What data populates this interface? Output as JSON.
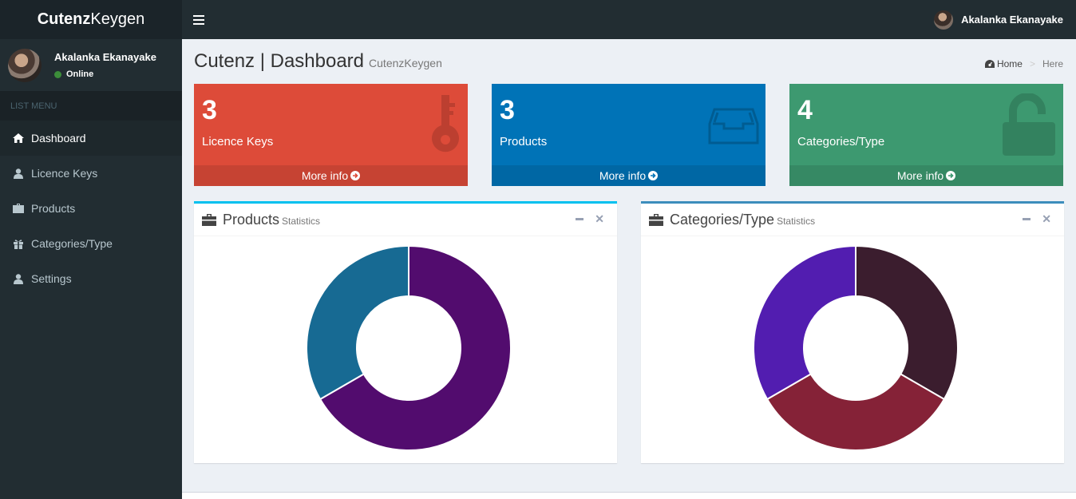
{
  "logo": {
    "bold": "Cutenz",
    "light": "Keygen"
  },
  "user": {
    "name": "Akalanka Ekanayake",
    "status": "Online"
  },
  "sidebar": {
    "header": "LIST MENU",
    "items": [
      {
        "label": "Dashboard",
        "icon": "home-icon",
        "active": true
      },
      {
        "label": "Licence Keys",
        "icon": "user-icon"
      },
      {
        "label": "Products",
        "icon": "briefcase-icon"
      },
      {
        "label": "Categories/Type",
        "icon": "gift-icon"
      },
      {
        "label": "Settings",
        "icon": "user-icon"
      }
    ]
  },
  "page": {
    "title": "Cutenz | Dashboard",
    "subtitle": "CutenzKeygen"
  },
  "breadcrumb": {
    "home": "Home",
    "sep": ">",
    "current": "Here"
  },
  "boxes": [
    {
      "value": "3",
      "label": "Licence Keys",
      "more": "More info",
      "color": "#dd4b39",
      "icon": "key-icon"
    },
    {
      "value": "3",
      "label": "Products",
      "more": "More info",
      "color": "#0073b7",
      "icon": "inbox-icon"
    },
    {
      "value": "4",
      "label": "Categories/Type",
      "more": "More info",
      "color": "#3d9970",
      "icon": "unlock-icon"
    }
  ],
  "panels": [
    {
      "title": "Products",
      "subtitle": "Statistics",
      "border": "#00c0ef",
      "icon": "briefcase-icon"
    },
    {
      "title": "Categories/Type",
      "subtitle": "Statistics",
      "border": "#3c8dbc",
      "icon": "briefcase-icon"
    }
  ],
  "chart_data": [
    {
      "type": "pie",
      "title": "Products Statistics",
      "donut": true,
      "values": [
        2,
        1
      ],
      "colors": [
        "#520c6e",
        "#176a93"
      ]
    },
    {
      "type": "pie",
      "title": "Categories/Type Statistics",
      "donut": true,
      "values": [
        1,
        1,
        1
      ],
      "colors": [
        "#3b1d2e",
        "#852237",
        "#521db0"
      ]
    }
  ]
}
